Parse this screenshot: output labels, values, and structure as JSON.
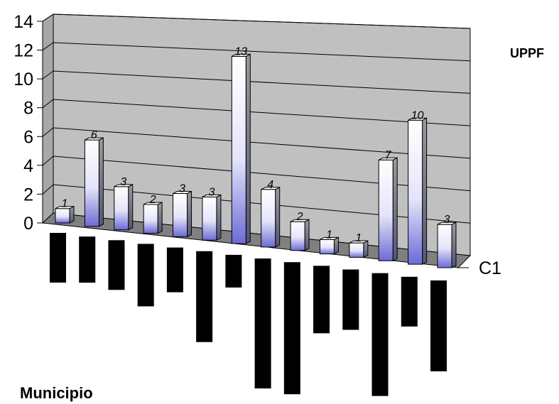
{
  "chart_data": {
    "type": "bar",
    "title": "",
    "legend_title": "UPPF",
    "xlabel": "Municipio",
    "ylabel": "",
    "ylim": [
      0,
      14
    ],
    "yticks": [
      "0",
      "2",
      "4",
      "6",
      "8",
      "10",
      "12",
      "14"
    ],
    "grid": true,
    "series_axis_label": "C1",
    "categories": [
      "",
      "",
      "",
      "",
      "",
      "",
      "",
      "",
      "",
      "",
      "",
      "",
      "",
      ""
    ],
    "values": [
      1,
      6,
      3,
      2,
      3,
      3,
      13,
      4,
      2,
      1,
      1,
      7,
      10,
      3
    ],
    "data_labels": [
      "1",
      "6",
      "3",
      "2",
      "3",
      "3",
      "13",
      "4",
      "2",
      "1",
      "1",
      "7",
      "10",
      "3"
    ],
    "colors": {
      "wall": "#c0c0c0",
      "floor": "#808080",
      "bar_top": "#ffffff",
      "bar_bottom": "#6b6bd6",
      "bar_side": "#8a8a8a",
      "category_block": "#000000"
    }
  }
}
